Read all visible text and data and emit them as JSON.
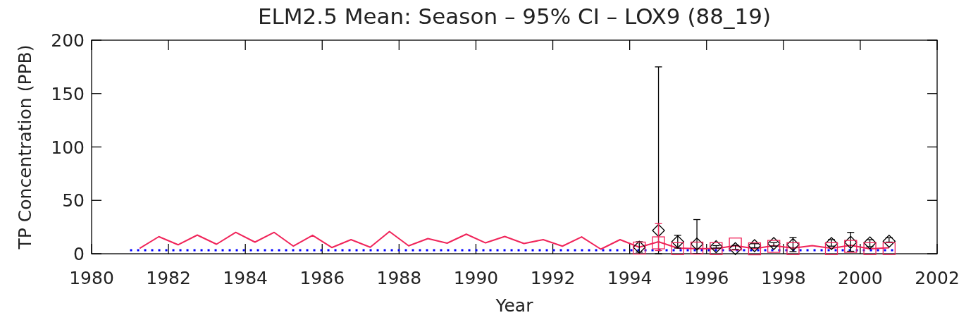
{
  "chart_data": {
    "type": "line",
    "title": "ELM2.5 Mean: Season – 95% CI – LOX9 (88_19)",
    "xlabel": "Year",
    "ylabel": "TP Concentration (PPB)",
    "xlim": [
      1980,
      2002
    ],
    "xticks": [
      1980,
      1982,
      1984,
      1986,
      1988,
      1990,
      1992,
      1994,
      1996,
      1998,
      2000,
      2002
    ],
    "ylim": [
      0,
      200
    ],
    "yticks": [
      0,
      50,
      100,
      150,
      200
    ],
    "grid": false,
    "series": [
      {
        "color": "#f0245a",
        "line_style": "solid",
        "marker": "none",
        "x": [
          1981.25,
          1981.75,
          1982.25,
          1982.75,
          1983.25,
          1983.75,
          1984.25,
          1984.75,
          1985.25,
          1985.75,
          1986.25,
          1986.75,
          1987.25,
          1987.75,
          1988.25,
          1988.75,
          1989.25,
          1989.75,
          1990.25,
          1990.75,
          1991.25,
          1991.75,
          1992.25,
          1992.75,
          1993.25,
          1993.75,
          1994.25,
          1994.75,
          1995.25,
          1995.75,
          1996.25,
          1996.75,
          1997.25,
          1997.75,
          1998.25,
          1998.75,
          1999.25,
          1999.75,
          2000.25,
          2000.75
        ],
        "values": [
          5.1,
          16,
          8.4,
          17.5,
          8.9,
          20,
          10.9,
          20,
          7.1,
          17.3,
          5.8,
          13.2,
          6.1,
          20.8,
          7.4,
          14.2,
          9.9,
          18.3,
          10.2,
          16.2,
          9.6,
          13.2,
          7.1,
          15.8,
          4.3,
          13.2,
          6.1,
          11.2,
          5.3,
          4.8,
          4.8,
          7.6,
          4.8,
          7.6,
          5.3,
          7.6,
          5.1,
          7.9,
          4.6,
          5.6
        ]
      },
      {
        "type": "line",
        "color": "#0000ff",
        "line_style": "dotted",
        "marker": "none",
        "x": [
          1981,
          2000.9
        ],
        "values": [
          3.3,
          3.3
        ]
      },
      {
        "type": "scatter",
        "color": "#000000",
        "marker": "diamond",
        "x": [
          1994.25,
          1994.75,
          1995.25,
          1995.75,
          1996.25,
          1996.75,
          1997.25,
          1997.75,
          1998.25,
          1999.25,
          1999.75,
          2000.25,
          2000.75
        ],
        "values": [
          6.1,
          21.8,
          11.2,
          9.1,
          6.6,
          4.8,
          7.6,
          9.6,
          8.6,
          9.6,
          10.7,
          10.2,
          11.7
        ],
        "errors": [
          [
            1.5,
            11.2
          ],
          [
            0,
            175
          ],
          [
            5.3,
            17.3
          ],
          [
            0,
            32
          ],
          [
            5.3,
            7.6
          ],
          [
            4.1,
            7.9
          ],
          [
            5.6,
            9.4
          ],
          [
            7.1,
            10.4
          ],
          [
            2,
            15.3
          ],
          [
            7.1,
            13.2
          ],
          [
            2.3,
            20
          ],
          [
            6.6,
            13.2
          ],
          [
            10.9,
            15
          ]
        ]
      },
      {
        "type": "scatter",
        "color": "#f0245a",
        "marker": "square",
        "x": [
          1994.25,
          1994.75,
          1995.25,
          1995.75,
          1996.25,
          1996.75,
          1997.25,
          1997.75,
          1998.25,
          1999.25,
          1999.75,
          2000.25,
          2000.75
        ],
        "values": [
          5.3,
          10.2,
          4.8,
          5.3,
          4.8,
          9.1,
          4.6,
          6.9,
          4.8,
          4.8,
          6.9,
          4.8,
          4.8
        ],
        "errors": [
          null,
          [
            3,
            28.2
          ],
          null,
          null,
          null,
          null,
          null,
          null,
          null,
          null,
          null,
          null,
          null
        ]
      }
    ]
  }
}
